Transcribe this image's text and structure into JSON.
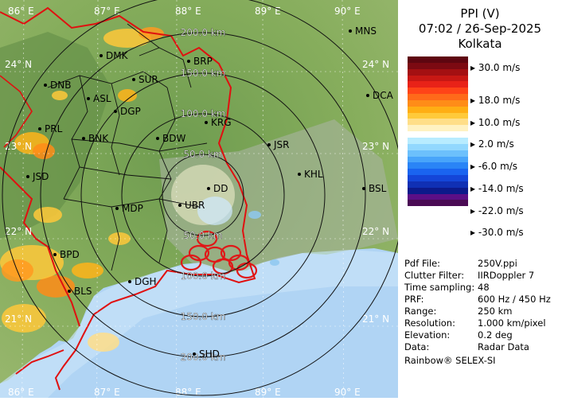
{
  "title": {
    "line1": "PPI (V)",
    "line2": "07:02 / 26-Sep-2025",
    "line3": "Kolkata"
  },
  "legend": {
    "colors": [
      "#4a0a54",
      "#5b0f86",
      "#0c1a8a",
      "#1030b4",
      "#1446d8",
      "#1a64f0",
      "#2a84f6",
      "#48a4fa",
      "#6cc0fc",
      "#92d8fe",
      "#b8ecff",
      "#ffffff",
      "#fff2c2",
      "#ffde88",
      "#ffca3a",
      "#ffae14",
      "#ff8c18",
      "#ff6a1a",
      "#ff4418",
      "#e82218",
      "#c81814",
      "#a41012",
      "#7c0a12",
      "#5e0610"
    ],
    "labels": [
      "30.0 m/s",
      "18.0 m/s",
      "10.0 m/s",
      "2.0 m/s",
      "-6.0 m/s",
      "-14.0 m/s",
      "-22.0 m/s",
      "-30.0 m/s"
    ]
  },
  "info": [
    {
      "key": "Pdf File:",
      "value": "250V.ppi"
    },
    {
      "key": "Clutter Filter:",
      "value": "IIRDoppler 7"
    },
    {
      "key": "Time sampling:",
      "value": "48"
    },
    {
      "key": "PRF:",
      "value": "600 Hz / 450 Hz"
    },
    {
      "key": "Range:",
      "value": "250 km"
    },
    {
      "key": "Resolution:",
      "value": "1.000 km/pixel"
    },
    {
      "key": "Elevation:",
      "value": "0.2 deg"
    },
    {
      "key": "Data:",
      "value": "Radar Data"
    }
  ],
  "credit": "Rainbow® SELEX-SI",
  "map": {
    "lon_labels": [
      "86° E",
      "87° E",
      "88° E",
      "89° E",
      "90° E"
    ],
    "lat_labels": [
      "24° N",
      "23° N",
      "22° N",
      "21° N"
    ],
    "range_labels": [
      "50.0 km",
      "100.0 km",
      "150.0 km",
      "200.0 km"
    ],
    "stations": [
      "DMK",
      "BRP",
      "SUR",
      "DNB",
      "ASL",
      "DGP",
      "PRL",
      "BNK",
      "BDW",
      "KRG",
      "JSR",
      "KHL",
      "JSD",
      "MDP",
      "DD",
      "UBR",
      "BPD",
      "DGH",
      "BLS",
      "SHD",
      "MNS",
      "DCA",
      "BSL"
    ],
    "colors": {
      "land": "#7faa5a",
      "sea": "#b0d4f4",
      "border": "#e01010",
      "district": "#101010",
      "ring": "#111111"
    }
  }
}
